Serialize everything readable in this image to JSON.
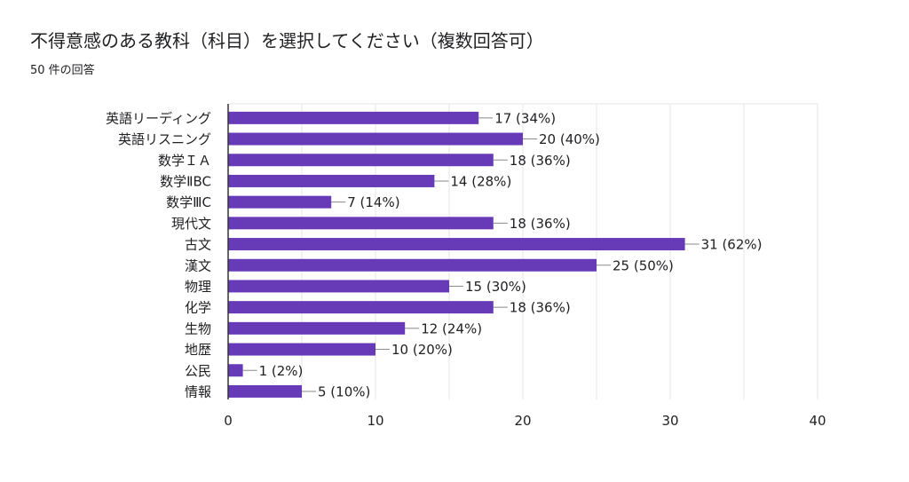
{
  "title": "不得意感のある教科（科目）を選択してください（複数回答可）",
  "subtitle": "50 件の回答",
  "colors": {
    "bar": "#673ab7",
    "grid": "#e6e6e6",
    "axis": "#333333",
    "text": "#202124"
  },
  "chart_data": {
    "type": "bar",
    "orientation": "horizontal",
    "categories": [
      "英語リーディング",
      "英語リスニング",
      "数学ＩＡ",
      "数学ⅡBC",
      "数学ⅢC",
      "現代文",
      "古文",
      "漢文",
      "物理",
      "化学",
      "生物",
      "地歴",
      "公民",
      "情報"
    ],
    "values": [
      17,
      20,
      18,
      14,
      7,
      18,
      31,
      25,
      15,
      18,
      12,
      10,
      1,
      5
    ],
    "data_labels": [
      "17 (34%)",
      "20 (40%)",
      "18 (36%)",
      "14 (28%)",
      "7 (14%)",
      "18 (36%)",
      "31 (62%)",
      "25 (50%)",
      "15 (30%)",
      "18 (36%)",
      "12 (24%)",
      "10 (20%)",
      "1 (2%)",
      "5 (10%)"
    ],
    "xlim": [
      0,
      40
    ],
    "xticks": [
      0,
      10,
      20,
      30,
      40
    ],
    "grid": true,
    "legend": "none"
  }
}
